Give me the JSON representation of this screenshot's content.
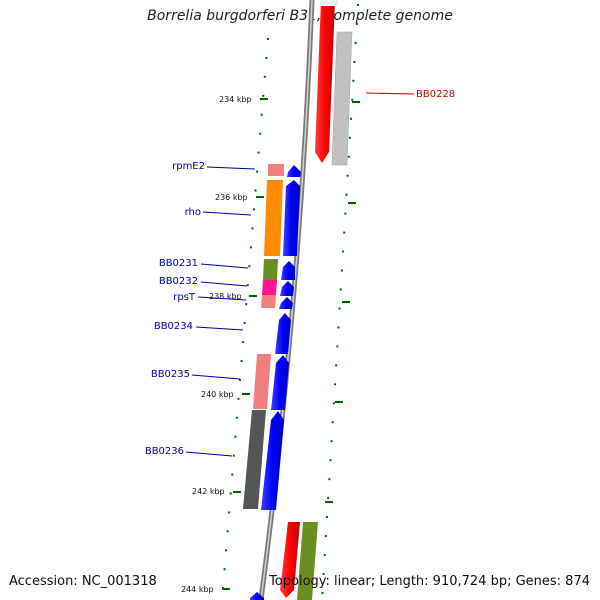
{
  "title": "Borrelia burgdorferi B31, complete genome",
  "footer": {
    "accession": "Accession: NC_001318",
    "stats": "Topology: linear; Length: 910,724 bp; Genes: 874"
  },
  "kbp_ticks": [
    "234 kbp",
    "236 kbp",
    "238 kbp",
    "240 kbp",
    "242 kbp",
    "244 kbp"
  ],
  "gene_labels": {
    "BB0228": "BB0228",
    "rpmE2": "rpmE2",
    "rho": "rho",
    "BB0231": "BB0231",
    "BB0232": "BB0232",
    "rpsT": "rpsT",
    "BB0234": "BB0234",
    "BB0235": "BB0235",
    "BB0236": "BB0236"
  },
  "colors": {
    "label_blue": "#0000aa",
    "label_red": "#cc0000",
    "tick_green": "#006600",
    "backbone": "#888888",
    "gene_blue": "#0000ff",
    "gene_red": "#ff0000",
    "gene_salmon": "#f08080",
    "gene_orange": "#ff8c00",
    "gene_olive": "#6b8e23",
    "gene_pink": "#ff1493",
    "gene_grey": "#555555",
    "gene_lightgrey": "#c0c0c0"
  }
}
